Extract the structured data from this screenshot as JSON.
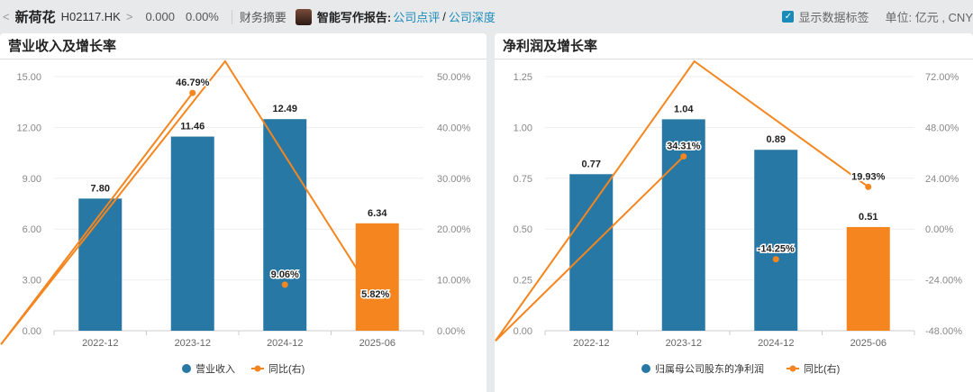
{
  "header": {
    "back": "<",
    "name": "新荷花",
    "code": "H02117.HK",
    "fwd": ">",
    "price": "0.000",
    "change": "0.00%",
    "summary": "财务摘要",
    "report_label": "智能写作报告:",
    "link1": "公司点评",
    "slash": "/",
    "link2": "公司深度",
    "show_labels": "显示数据标签",
    "unit": "单位: 亿元 , CNY"
  },
  "colors": {
    "bar": "#2878a5",
    "bar_last": "#f5861f",
    "line": "#f5861f"
  },
  "chart_data": [
    {
      "type": "bar",
      "title": "营业收入及增长率",
      "categories": [
        "2022-12",
        "2023-12",
        "2024-12",
        "2025-06"
      ],
      "series": [
        {
          "name": "营业收入",
          "type": "bar",
          "values": [
            7.8,
            11.46,
            12.49,
            6.34
          ],
          "labels": [
            "7.80",
            "11.46",
            "12.49",
            "6.34"
          ]
        },
        {
          "name": "同比(右)",
          "type": "line",
          "values": [
            null,
            46.79,
            9.06,
            5.82
          ],
          "labels": [
            "",
            "46.79%",
            "9.06%",
            "5.82%"
          ]
        }
      ],
      "yticks": [
        "0.00",
        "3.00",
        "6.00",
        "9.00",
        "12.00",
        "15.00"
      ],
      "ylim": [
        0,
        15
      ],
      "y2ticks": [
        "0.00%",
        "10.00%",
        "20.00%",
        "30.00%",
        "40.00%",
        "50.00%"
      ],
      "y2lim": [
        0,
        50
      ],
      "legend": "bottom"
    },
    {
      "type": "bar",
      "title": "净利润及增长率",
      "categories": [
        "2022-12",
        "2023-12",
        "2024-12",
        "2025-06"
      ],
      "series": [
        {
          "name": "归属母公司股东的净利润",
          "type": "bar",
          "values": [
            0.77,
            1.04,
            0.89,
            0.51
          ],
          "labels": [
            "0.77",
            "1.04",
            "0.89",
            "0.51"
          ]
        },
        {
          "name": "同比(右)",
          "type": "line",
          "values": [
            null,
            34.31,
            -14.25,
            19.93
          ],
          "labels": [
            "",
            "34.31%",
            "-14.25%",
            "19.93%"
          ]
        }
      ],
      "yticks": [
        "0.00",
        "0.25",
        "0.50",
        "0.75",
        "1.00",
        "1.25"
      ],
      "ylim": [
        0,
        1.25
      ],
      "y2ticks": [
        "-48.00%",
        "-24.00%",
        "0.00%",
        "24.00%",
        "48.00%",
        "72.00%"
      ],
      "y2lim": [
        -48,
        72
      ],
      "legend": "bottom"
    }
  ]
}
